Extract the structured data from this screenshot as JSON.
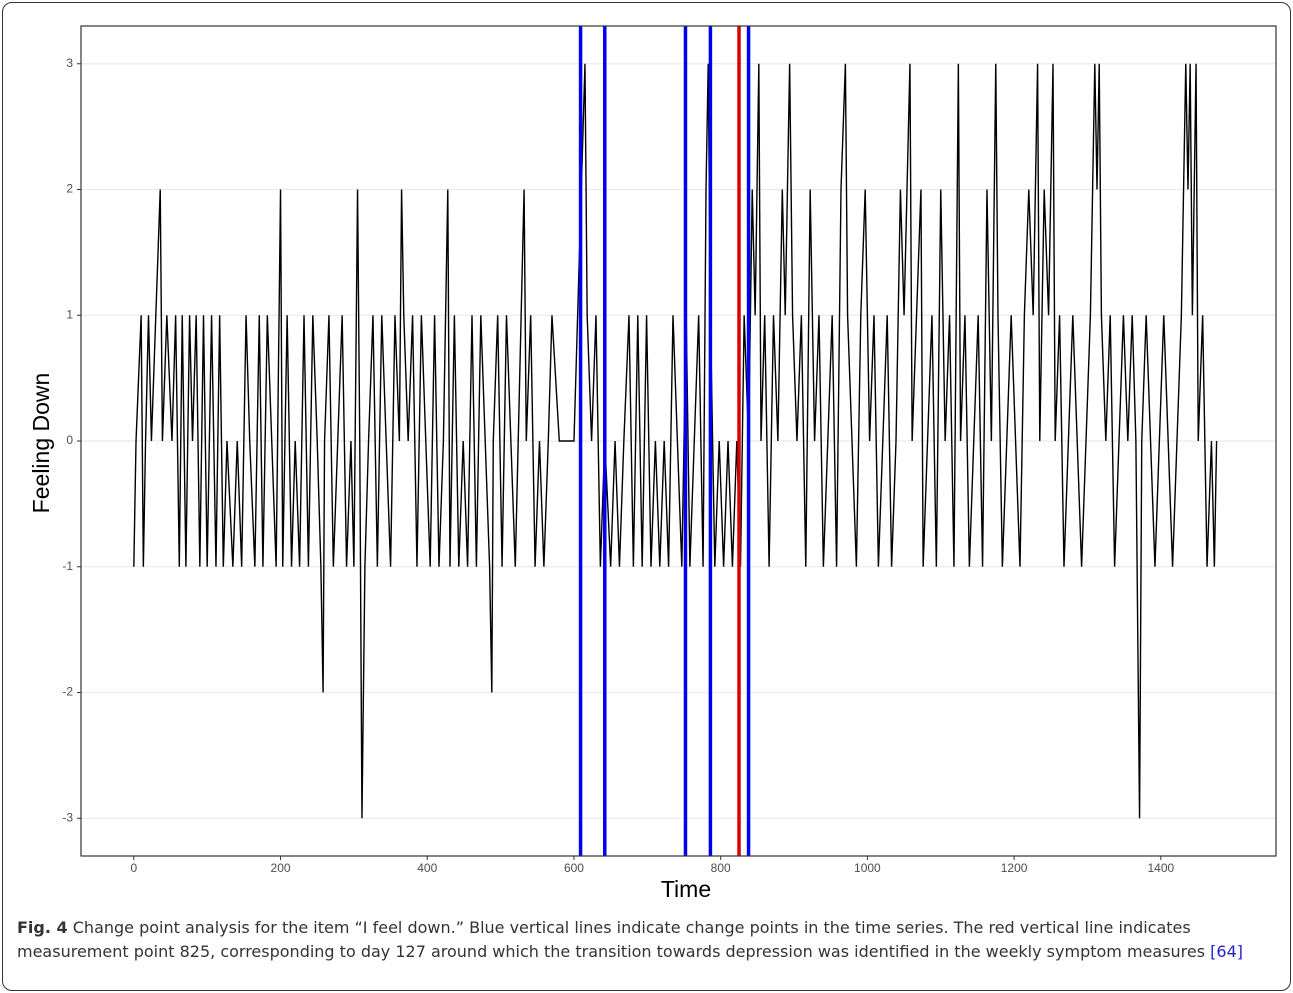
{
  "chart_data": {
    "type": "line",
    "x_label": "Time",
    "y_label": "Feeling Down",
    "xlim": [
      -72,
      1557
    ],
    "ylim": [
      -3.3,
      3.3
    ],
    "xticks": [
      0,
      200,
      400,
      600,
      800,
      1000,
      1200,
      1400
    ],
    "yticks": [
      -3,
      -2,
      -1,
      0,
      1,
      2,
      3
    ],
    "grid": true,
    "series": [
      {
        "color": "#000000",
        "x": [
          0,
          3,
          10,
          13,
          16,
          20,
          24,
          30,
          36,
          39,
          45,
          52,
          57,
          62,
          66,
          71,
          76,
          80,
          85,
          90,
          95,
          100,
          106,
          112,
          117,
          122,
          127,
          135,
          141,
          147,
          153,
          158,
          165,
          171,
          176,
          182,
          188,
          194,
          200,
          203,
          209,
          215,
          220,
          226,
          232,
          238,
          244,
          250,
          255,
          258,
          260,
          266,
          272,
          278,
          284,
          290,
          296,
          300,
          305,
          308,
          311,
          313,
          315,
          320,
          326,
          332,
          338,
          344,
          350,
          356,
          362,
          365,
          368,
          374,
          380,
          386,
          392,
          398,
          404,
          410,
          416,
          422,
          428,
          431,
          437,
          443,
          449,
          455,
          461,
          467,
          473,
          479,
          485,
          488,
          490,
          496,
          502,
          508,
          514,
          520,
          532,
          535,
          541,
          547,
          553,
          559,
          565,
          570,
          580,
          600,
          610,
          615,
          618,
          624,
          630,
          636,
          642,
          650,
          656,
          662,
          668,
          675,
          681,
          687,
          693,
          699,
          705,
          711,
          717,
          723,
          729,
          735,
          741,
          747,
          753,
          758,
          764,
          770,
          776,
          780,
          783,
          786,
          792,
          798,
          804,
          810,
          816,
          822,
          827,
          832,
          838,
          843,
          847,
          852,
          855,
          860,
          866,
          872,
          878,
          884,
          888,
          894,
          898,
          904,
          910,
          916,
          922,
          928,
          934,
          940,
          946,
          952,
          958,
          964,
          970,
          973,
          979,
          985,
          991,
          997,
          1003,
          1009,
          1015,
          1021,
          1027,
          1033,
          1039,
          1045,
          1050,
          1058,
          1061,
          1067,
          1073,
          1076,
          1082,
          1088,
          1094,
          1100,
          1106,
          1112,
          1118,
          1124,
          1127,
          1133,
          1139,
          1145,
          1151,
          1157,
          1163,
          1169,
          1175,
          1178,
          1184,
          1190,
          1196,
          1202,
          1208,
          1214,
          1220,
          1226,
          1232,
          1235,
          1241,
          1247,
          1253,
          1256,
          1262,
          1268,
          1274,
          1280,
          1286,
          1292,
          1298,
          1304,
          1310,
          1313,
          1316,
          1319,
          1325,
          1331,
          1337,
          1343,
          1349,
          1355,
          1361,
          1366,
          1371,
          1374,
          1380,
          1386,
          1392,
          1398,
          1404,
          1410,
          1416,
          1422,
          1428,
          1434,
          1437,
          1440,
          1443,
          1448,
          1451,
          1457,
          1463,
          1469,
          1473,
          1476
        ],
        "values": [
          -1,
          0,
          1,
          -1,
          0,
          1,
          0,
          1,
          2,
          0,
          1,
          0,
          1,
          -1,
          1,
          -1,
          1,
          0,
          1,
          -1,
          1,
          -1,
          1,
          -1,
          1,
          -1,
          0,
          -1,
          0,
          -1,
          1,
          0,
          -1,
          1,
          -1,
          1,
          0,
          -1,
          2,
          -1,
          1,
          -1,
          0,
          -1,
          1,
          -1,
          1,
          0,
          -1,
          -2,
          0,
          1,
          -1,
          0,
          1,
          -1,
          0,
          -1,
          2,
          0,
          -3,
          -2,
          -1,
          0,
          1,
          -1,
          1,
          0,
          -1,
          1,
          0,
          2,
          1,
          0,
          1,
          -1,
          1,
          0,
          -1,
          1,
          -1,
          0,
          2,
          -1,
          1,
          -1,
          0,
          -1,
          1,
          -1,
          1,
          0,
          -1,
          -2,
          0,
          1,
          -1,
          1,
          0,
          -1,
          2,
          0,
          1,
          -1,
          0,
          -1,
          0,
          1,
          0,
          0,
          2,
          3,
          1,
          0,
          1,
          -1,
          0,
          -1,
          0,
          -1,
          0,
          1,
          -1,
          1,
          -1,
          1,
          -1,
          0,
          -1,
          0,
          -1,
          1,
          0,
          -1,
          1,
          -1,
          0,
          1,
          -1,
          2,
          3,
          1,
          -1,
          0,
          -1,
          0,
          -1,
          0,
          -1,
          1,
          0,
          2,
          1,
          3,
          0,
          1,
          -1,
          1,
          0,
          2,
          1,
          3,
          1,
          0,
          1,
          -1,
          2,
          0,
          1,
          -1,
          0,
          1,
          -1,
          2,
          3,
          1,
          0,
          -1,
          1,
          2,
          0,
          1,
          -1,
          0,
          1,
          -1,
          0,
          2,
          1,
          3,
          0,
          1,
          2,
          -1,
          0,
          1,
          -1,
          2,
          0,
          1,
          -1,
          3,
          0,
          1,
          -1,
          0,
          1,
          -1,
          2,
          0,
          3,
          1,
          -1,
          0,
          1,
          0,
          -1,
          1,
          2,
          1,
          3,
          0,
          2,
          1,
          3,
          0,
          1,
          -1,
          0,
          1,
          0,
          -1,
          0,
          1,
          3,
          2,
          3,
          1,
          0,
          1,
          -1,
          0,
          1,
          0,
          1,
          0,
          -3,
          0,
          1,
          0,
          -1,
          0,
          1,
          0,
          -1,
          0,
          1,
          3,
          2,
          3,
          1,
          3,
          0,
          1,
          -1,
          0,
          -1,
          0
        ]
      }
    ],
    "vlines": [
      {
        "x": 609,
        "color": "#0000ee"
      },
      {
        "x": 642,
        "color": "#0000ee"
      },
      {
        "x": 752,
        "color": "#0000ee"
      },
      {
        "x": 786,
        "color": "#0000ee"
      },
      {
        "x": 825,
        "color": "#dd0000"
      },
      {
        "x": 838,
        "color": "#0000ee"
      }
    ]
  },
  "caption": {
    "label": "Fig. 4",
    "text": "Change point analysis for the item “I feel down.” Blue vertical lines indicate change points in the time series. The red vertical line indicates measurement point 825, corresponding to day 127 around which the transition towards depression was identified in the weekly symptom measures ",
    "ref": "[64]"
  }
}
